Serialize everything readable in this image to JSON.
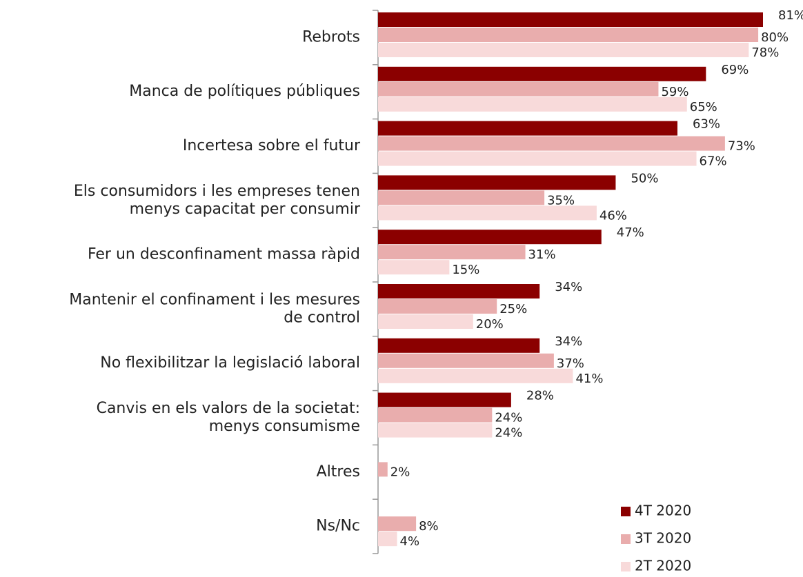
{
  "chart_data": {
    "type": "hbar",
    "categories": [
      "Rebrots",
      "Manca de polítiques públiques",
      "Incertesa sobre el futur",
      "Els consumidors i les empreses tenen\nmenys capacitat per consumir",
      "Fer un desconfinament massa ràpid",
      "Mantenir el confinament i les mesures\nde control",
      "No flexibilitzar la legislació laboral",
      "Canvis en els valors de la societat:\nmenys consumisme",
      "Altres",
      "Ns/Nc"
    ],
    "series": [
      {
        "name": "4T 2020",
        "color": "#8b0000",
        "values": [
          81,
          69,
          63,
          50,
          47,
          34,
          34,
          28,
          null,
          null
        ],
        "value_labels": [
          "81%",
          "69%",
          "63%",
          "50%",
          "47%",
          "34%",
          "34%",
          "28%",
          null,
          null
        ]
      },
      {
        "name": "3T 2020",
        "color": "#e9adad",
        "values": [
          80,
          59,
          73,
          35,
          31,
          25,
          37,
          24,
          2,
          8
        ],
        "value_labels": [
          "80%",
          "59%",
          "73%",
          "35%",
          "31%",
          "25%",
          "37%",
          "24%",
          "2%",
          "8%"
        ]
      },
      {
        "name": "2T 2020",
        "color": "#f8dada",
        "values": [
          78,
          65,
          67,
          46,
          15,
          20,
          41,
          24,
          null,
          4
        ],
        "value_labels": [
          "78%",
          "65%",
          "67%",
          "46%",
          "15%",
          "20%",
          "41%",
          "24%",
          null,
          "4%"
        ]
      }
    ],
    "legend": "bottom-right"
  }
}
